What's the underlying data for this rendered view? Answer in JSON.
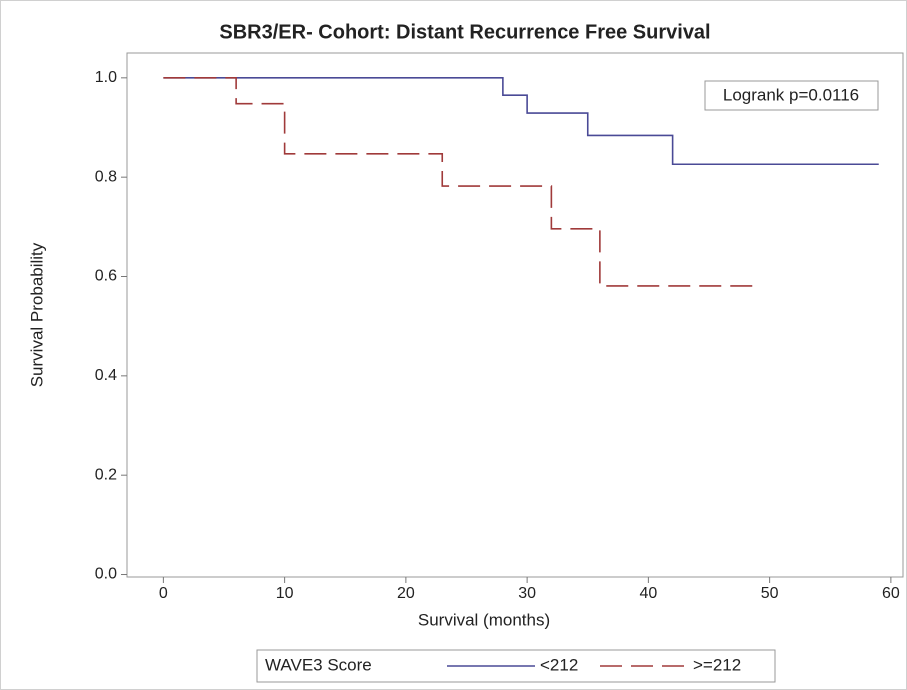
{
  "chart_data": {
    "type": "step",
    "title": "SBR3/ER- Cohort: Distant Recurrence Free Survival",
    "x_label": "Survival (months)",
    "y_label": "Survival Probability",
    "annotation": "Logrank p=0.0116",
    "legend_title": "WAVE3 Score",
    "legend": "bottom",
    "xlim": [
      -3,
      61
    ],
    "ylim": [
      -0.005,
      1.05
    ],
    "xticks": [
      0,
      10,
      20,
      30,
      40,
      50,
      60
    ],
    "yticks": [
      {
        "value": 0,
        "label": "0.0"
      },
      0.2,
      0.4,
      0.6,
      0.8,
      {
        "value": 1,
        "label": "1.0"
      }
    ],
    "series": [
      {
        "name": "<212",
        "color": "#4a4a96",
        "dash": "solid",
        "x": [
          0,
          28,
          30,
          35,
          42,
          59
        ],
        "values": [
          1.0,
          0.965,
          0.929,
          0.884,
          0.826,
          0.826
        ]
      },
      {
        "name": ">=212",
        "color": "#a03a3a",
        "dash": "dashed",
        "x": [
          0,
          6,
          10,
          23,
          32,
          36,
          49
        ],
        "values": [
          1.0,
          0.948,
          0.847,
          0.782,
          0.696,
          0.581,
          0.581
        ]
      }
    ]
  }
}
